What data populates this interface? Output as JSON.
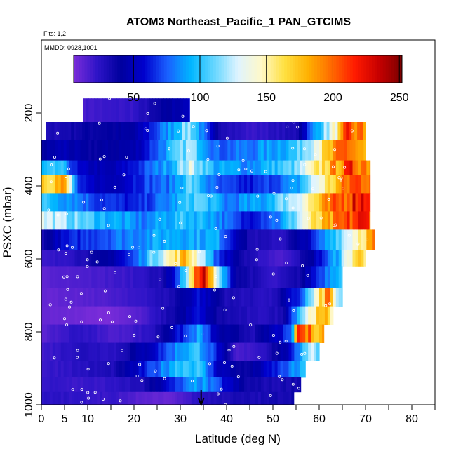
{
  "chart_data": {
    "type": "heatmap",
    "title": "ATOM3 Northeast_Pacific_1 PAN_GTCIMS",
    "subtitle_flights": "Flts: 1,2",
    "subtitle_dates": "MMDD: 0928,1001",
    "xlabel": "Latitude (deg N)",
    "ylabel": "PSXC (mbar)",
    "xlim": [
      0,
      85
    ],
    "ylim": [
      1000,
      0
    ],
    "x_ticks": [
      0,
      5,
      10,
      20,
      30,
      40,
      50,
      60,
      70,
      80
    ],
    "x_tick_labels": [
      "0",
      "5",
      "10",
      "20",
      "30",
      "40",
      "50",
      "60",
      "70",
      "80"
    ],
    "y_ticks": [
      200,
      400,
      600,
      800,
      1000
    ],
    "y_tick_labels": [
      "200",
      "400",
      "600",
      "800",
      "1000"
    ],
    "colorbar": {
      "range": [
        5,
        252
      ],
      "ticks": [
        50,
        100,
        150,
        200,
        250
      ],
      "tick_labels": [
        "50",
        "100",
        "150",
        "200",
        "250"
      ],
      "palette": [
        "#7b2dd9",
        "#2e14c8",
        "#00009e",
        "#0000cd",
        "#1a60ff",
        "#00b7ff",
        "#66d6ff",
        "#dff4ff",
        "#fff8c8",
        "#ffe040",
        "#ffb000",
        "#ff6a00",
        "#ff1a00",
        "#c80000",
        "#7a0000"
      ]
    },
    "arrow_latitude": 34.5,
    "pressure_bands": [
      {
        "p_top": 160,
        "p_bot": 225,
        "lat_range": [
          9,
          32
        ],
        "value_stops": [
          [
            9,
            18
          ],
          [
            20,
            22
          ],
          [
            27,
            40
          ],
          [
            32,
            55
          ]
        ]
      },
      {
        "p_top": 225,
        "p_bot": 275,
        "lat_range": [
          1,
          70
        ],
        "value_stops": [
          [
            1,
            28
          ],
          [
            10,
            38
          ],
          [
            20,
            42
          ],
          [
            28,
            90
          ],
          [
            32,
            120
          ],
          [
            38,
            35
          ],
          [
            45,
            20
          ],
          [
            55,
            30
          ],
          [
            60,
            100
          ],
          [
            64,
            150
          ],
          [
            66,
            205
          ],
          [
            70,
            185
          ]
        ]
      },
      {
        "p_top": 275,
        "p_bot": 330,
        "lat_range": [
          0,
          70
        ],
        "value_stops": [
          [
            0,
            40
          ],
          [
            5,
            50
          ],
          [
            10,
            38
          ],
          [
            20,
            45
          ],
          [
            28,
            95
          ],
          [
            32,
            120
          ],
          [
            38,
            75
          ],
          [
            45,
            80
          ],
          [
            55,
            100
          ],
          [
            60,
            150
          ],
          [
            66,
            205
          ],
          [
            70,
            170
          ]
        ]
      },
      {
        "p_top": 330,
        "p_bot": 370,
        "lat_range": [
          0,
          71
        ],
        "value_stops": [
          [
            0,
            90
          ],
          [
            4,
            100
          ],
          [
            8,
            55
          ],
          [
            15,
            45
          ],
          [
            22,
            70
          ],
          [
            28,
            95
          ],
          [
            32,
            130
          ],
          [
            38,
            90
          ],
          [
            45,
            85
          ],
          [
            55,
            110
          ],
          [
            62,
            175
          ],
          [
            67,
            210
          ],
          [
            71,
            195
          ]
        ]
      },
      {
        "p_top": 370,
        "p_bot": 420,
        "lat_range": [
          0,
          71
        ],
        "value_stops": [
          [
            0,
            175
          ],
          [
            5,
            180
          ],
          [
            8,
            60
          ],
          [
            15,
            48
          ],
          [
            22,
            70
          ],
          [
            28,
            80
          ],
          [
            32,
            110
          ],
          [
            38,
            70
          ],
          [
            45,
            60
          ],
          [
            55,
            85
          ],
          [
            62,
            160
          ],
          [
            67,
            205
          ],
          [
            71,
            210
          ]
        ]
      },
      {
        "p_top": 420,
        "p_bot": 470,
        "lat_range": [
          0,
          71
        ],
        "value_stops": [
          [
            0,
            100
          ],
          [
            6,
            90
          ],
          [
            12,
            70
          ],
          [
            20,
            60
          ],
          [
            28,
            85
          ],
          [
            34,
            110
          ],
          [
            40,
            80
          ],
          [
            48,
            90
          ],
          [
            55,
            130
          ],
          [
            62,
            185
          ],
          [
            68,
            225
          ],
          [
            71,
            230
          ]
        ]
      },
      {
        "p_top": 470,
        "p_bot": 520,
        "lat_range": [
          0,
          71
        ],
        "value_stops": [
          [
            0,
            130
          ],
          [
            6,
            115
          ],
          [
            14,
            95
          ],
          [
            22,
            80
          ],
          [
            30,
            100
          ],
          [
            36,
            95
          ],
          [
            44,
            60
          ],
          [
            52,
            85
          ],
          [
            58,
            150
          ],
          [
            64,
            190
          ],
          [
            68,
            215
          ],
          [
            71,
            215
          ]
        ]
      },
      {
        "p_top": 520,
        "p_bot": 575,
        "lat_range": [
          0,
          72
        ],
        "value_stops": [
          [
            0,
            30
          ],
          [
            4,
            55
          ],
          [
            10,
            70
          ],
          [
            20,
            85
          ],
          [
            30,
            95
          ],
          [
            38,
            90
          ],
          [
            45,
            30
          ],
          [
            52,
            25
          ],
          [
            58,
            55
          ],
          [
            64,
            110
          ],
          [
            69,
            160
          ],
          [
            72,
            190
          ]
        ]
      },
      {
        "p_top": 575,
        "p_bot": 620,
        "lat_range": [
          0,
          70
        ],
        "value_stops": [
          [
            0,
            18
          ],
          [
            6,
            25
          ],
          [
            14,
            40
          ],
          [
            20,
            70
          ],
          [
            24,
            110
          ],
          [
            28,
            150
          ],
          [
            31,
            175
          ],
          [
            34,
            140
          ],
          [
            38,
            70
          ],
          [
            44,
            30
          ],
          [
            52,
            15
          ],
          [
            58,
            40
          ],
          [
            64,
            95
          ],
          [
            68,
            170
          ],
          [
            70,
            160
          ]
        ]
      },
      {
        "p_top": 620,
        "p_bot": 680,
        "lat_range": [
          0,
          65
        ],
        "value_stops": [
          [
            0,
            12
          ],
          [
            8,
            15
          ],
          [
            18,
            20
          ],
          [
            26,
            30
          ],
          [
            30,
            80
          ],
          [
            33,
            175
          ],
          [
            34.5,
            240
          ],
          [
            36,
            200
          ],
          [
            38,
            120
          ],
          [
            42,
            40
          ],
          [
            50,
            20
          ],
          [
            56,
            35
          ],
          [
            60,
            70
          ],
          [
            65,
            110
          ]
        ]
      },
      {
        "p_top": 680,
        "p_bot": 730,
        "lat_range": [
          0,
          65
        ],
        "value_stops": [
          [
            0,
            10
          ],
          [
            8,
            12
          ],
          [
            18,
            18
          ],
          [
            28,
            30
          ],
          [
            34,
            60
          ],
          [
            40,
            30
          ],
          [
            50,
            25
          ],
          [
            56,
            70
          ],
          [
            60,
            150
          ],
          [
            62,
            200
          ],
          [
            64,
            120
          ],
          [
            65,
            100
          ]
        ]
      },
      {
        "p_top": 730,
        "p_bot": 780,
        "lat_range": [
          0,
          63
        ],
        "value_stops": [
          [
            0,
            10
          ],
          [
            8,
            8
          ],
          [
            14,
            5
          ],
          [
            22,
            15
          ],
          [
            30,
            40
          ],
          [
            34,
            60
          ],
          [
            38,
            35
          ],
          [
            46,
            25
          ],
          [
            52,
            30
          ],
          [
            56,
            110
          ],
          [
            59,
            160
          ],
          [
            62,
            170
          ],
          [
            63,
            150
          ]
        ]
      },
      {
        "p_top": 780,
        "p_bot": 830,
        "lat_range": [
          0,
          61
        ],
        "value_stops": [
          [
            0,
            12
          ],
          [
            8,
            25
          ],
          [
            16,
            15
          ],
          [
            24,
            25
          ],
          [
            30,
            60
          ],
          [
            34,
            90
          ],
          [
            38,
            45
          ],
          [
            46,
            30
          ],
          [
            54,
            70
          ],
          [
            55.5,
            220
          ],
          [
            57,
            195
          ],
          [
            61,
            180
          ]
        ]
      },
      {
        "p_top": 830,
        "p_bot": 880,
        "lat_range": [
          0,
          60
        ],
        "value_stops": [
          [
            0,
            18
          ],
          [
            8,
            28
          ],
          [
            16,
            25
          ],
          [
            24,
            55
          ],
          [
            30,
            90
          ],
          [
            34,
            100
          ],
          [
            38,
            60
          ],
          [
            42,
            15
          ],
          [
            48,
            25
          ],
          [
            54,
            55
          ],
          [
            58,
            130
          ],
          [
            60,
            110
          ]
        ]
      },
      {
        "p_top": 880,
        "p_bot": 925,
        "lat_range": [
          0,
          57
        ],
        "value_stops": [
          [
            0,
            20
          ],
          [
            8,
            25
          ],
          [
            16,
            30
          ],
          [
            24,
            70
          ],
          [
            30,
            105
          ],
          [
            34,
            100
          ],
          [
            38,
            55
          ],
          [
            44,
            35
          ],
          [
            50,
            60
          ],
          [
            54,
            80
          ],
          [
            57,
            95
          ]
        ]
      },
      {
        "p_top": 925,
        "p_bot": 965,
        "lat_range": [
          0,
          56
        ],
        "value_stops": [
          [
            0,
            22
          ],
          [
            8,
            20
          ],
          [
            16,
            22
          ],
          [
            22,
            30
          ],
          [
            28,
            60
          ],
          [
            34,
            90
          ],
          [
            38,
            70
          ],
          [
            44,
            35
          ],
          [
            50,
            30
          ],
          [
            56,
            35
          ]
        ]
      },
      {
        "p_top": 965,
        "p_bot": 1000,
        "lat_range": [
          0,
          54.5
        ],
        "value_stops": [
          [
            0,
            25
          ],
          [
            8,
            22
          ],
          [
            16,
            20
          ],
          [
            22,
            12
          ],
          [
            28,
            10
          ],
          [
            34,
            25
          ],
          [
            40,
            30
          ],
          [
            48,
            30
          ],
          [
            54.5,
            35
          ]
        ]
      }
    ]
  }
}
